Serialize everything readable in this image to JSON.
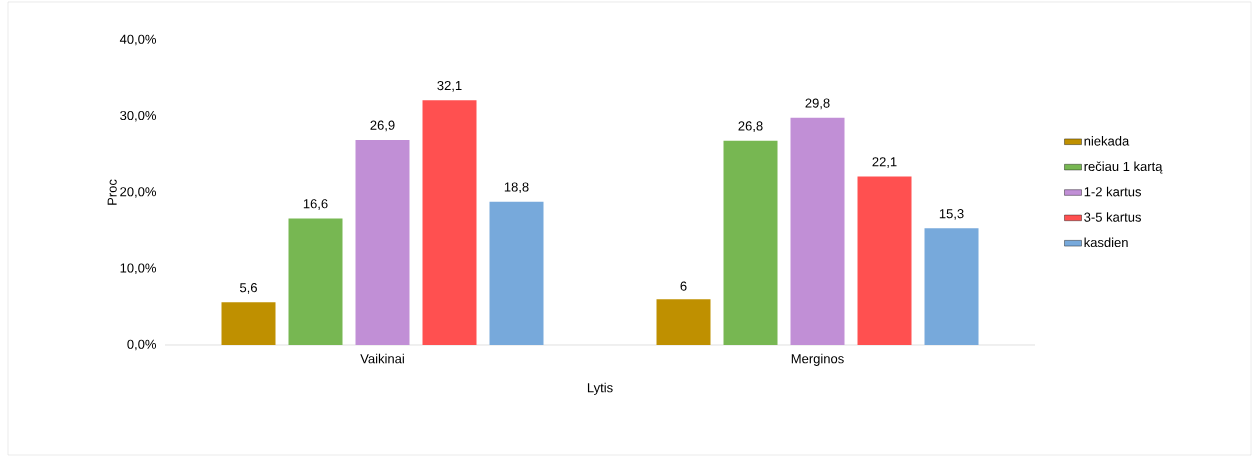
{
  "chart_data": {
    "type": "bar",
    "xlabel": "Lytis",
    "ylabel": "Proc",
    "categories": [
      "Vaikinai",
      "Merginos"
    ],
    "series": [
      {
        "name": "niekada",
        "color": "#bf9000",
        "values": [
          5.6,
          6
        ],
        "value_labels": [
          "5,6",
          "6"
        ]
      },
      {
        "name": "rečiau 1 kartą",
        "color": "#77b752",
        "values": [
          16.6,
          26.8
        ],
        "value_labels": [
          "16,6",
          "26,8"
        ]
      },
      {
        "name": "1-2 kartus",
        "color": "#c18fd6",
        "values": [
          26.9,
          29.8
        ],
        "value_labels": [
          "26,9",
          "29,8"
        ]
      },
      {
        "name": "3-5 kartus",
        "color": "#ff5050",
        "values": [
          32.1,
          22.1
        ],
        "value_labels": [
          "32,1",
          "22,1"
        ]
      },
      {
        "name": "kasdien",
        "color": "#77a9db",
        "values": [
          18.8,
          15.3
        ],
        "value_labels": [
          "18,8",
          "15,3"
        ]
      }
    ],
    "ylim": [
      0,
      40
    ],
    "yticks": [
      {
        "value": 0,
        "label": "0,0%"
      },
      {
        "value": 10,
        "label": "10,0%"
      },
      {
        "value": 20,
        "label": "20,0%"
      },
      {
        "value": 30,
        "label": "30,0%"
      },
      {
        "value": 40,
        "label": "40,0%"
      }
    ],
    "legend": "right",
    "grid": false
  }
}
